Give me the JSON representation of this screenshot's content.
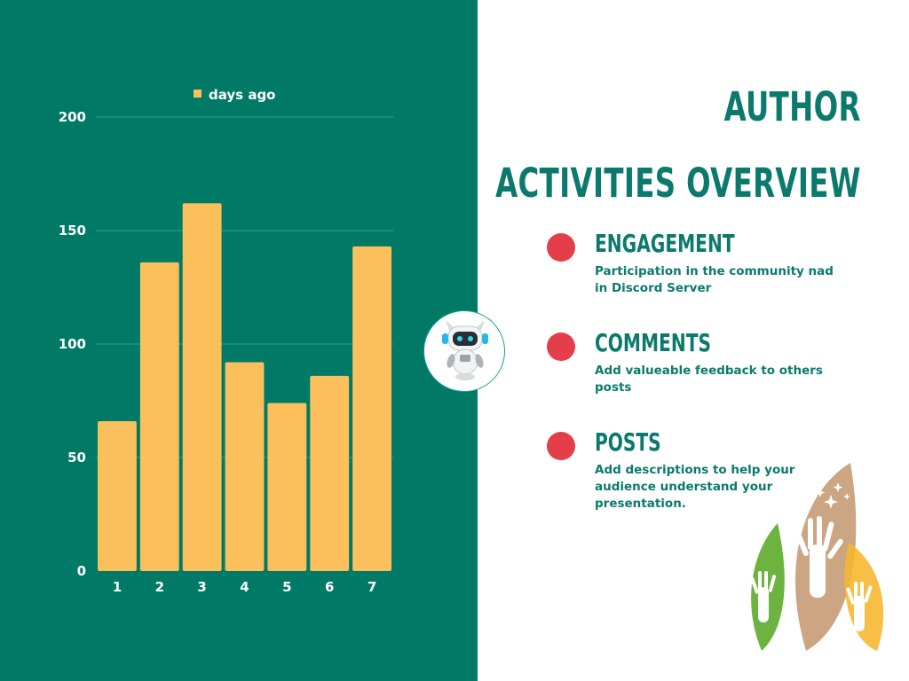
{
  "chart_data": {
    "type": "bar",
    "categories": [
      "1",
      "2",
      "3",
      "4",
      "5",
      "6",
      "7"
    ],
    "series": [
      {
        "name": "days ago",
        "values": [
          66,
          136,
          162,
          92,
          74,
          86,
          143
        ]
      }
    ],
    "ylim": [
      0,
      200
    ],
    "yticks": [
      0,
      50,
      100,
      150,
      200
    ],
    "grid": true,
    "legend": "top-center",
    "title": "",
    "xlabel": "",
    "ylabel": "",
    "bar_color": "#fbbf5c"
  },
  "heading": {
    "line1": "AUTHOR",
    "line2": "ACTIVITIES OVERVIEW"
  },
  "items": [
    {
      "title": "ENGAGEMENT",
      "description": "Participation in the community nad in Discord Server"
    },
    {
      "title": "COMMENTS",
      "description": "Add valueable feedback to others posts"
    },
    {
      "title": "POSTS",
      "description": "Add descriptions to help your audience understand your presentation."
    }
  ],
  "colors": {
    "panel": "#007a66",
    "accent_text": "#0b7a6d",
    "dot": "#e53e4b",
    "bar": "#fbbf5c"
  },
  "icons": {
    "badge": "robot-icon",
    "logo": "raised-hands-icon"
  }
}
